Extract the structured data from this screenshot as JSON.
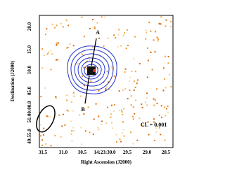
{
  "figure": {
    "y_axis_label": "Declination (J2000)",
    "x_axis_label": "Right Ascension (J2000)",
    "y_ticks": [
      "49:55.0",
      "51:00:00.0",
      "05.0",
      "10.0",
      "15.0",
      "20.0"
    ],
    "x_ticks": [
      "31.5",
      "31.0",
      "30.5",
      "14:23:30.0",
      "29.5",
      "29.0",
      "28.5"
    ],
    "labels": [
      "A",
      "B"
    ],
    "annotation": "CL = 0.001"
  }
}
